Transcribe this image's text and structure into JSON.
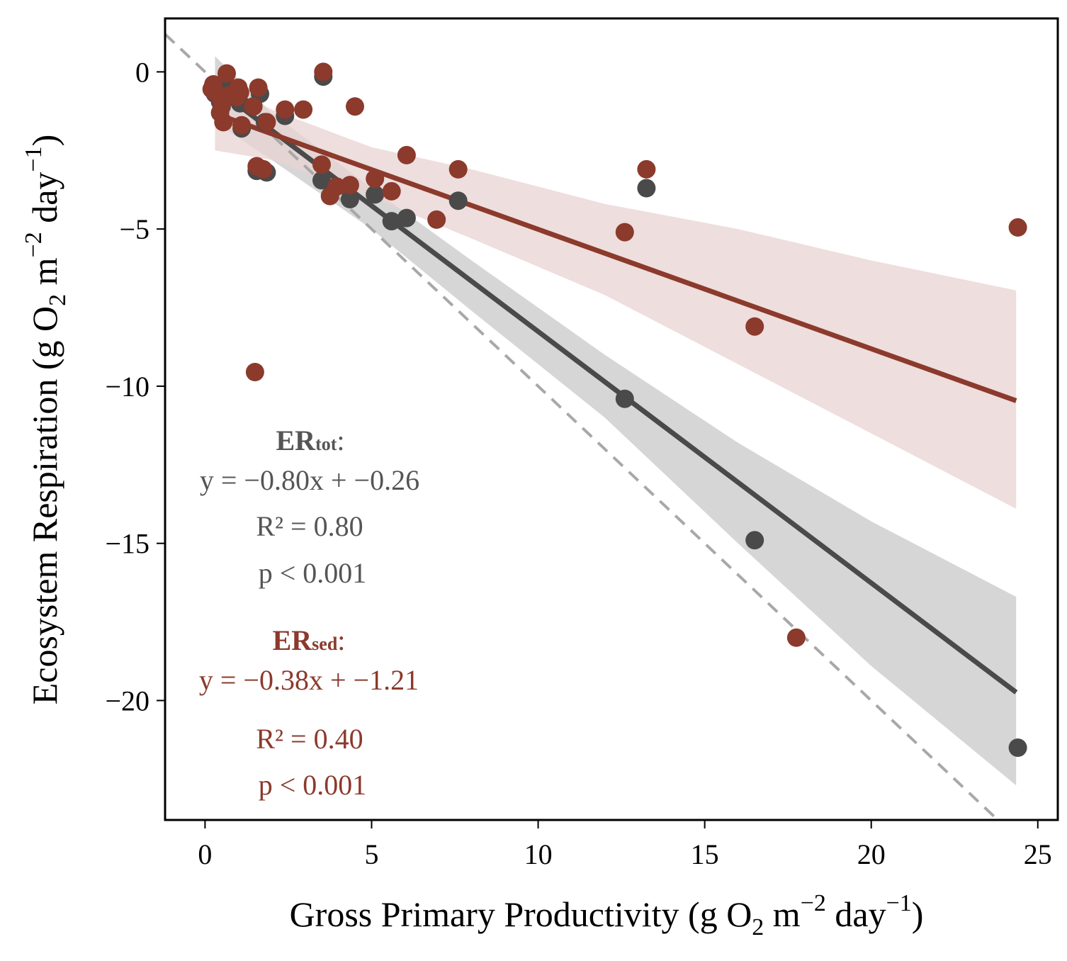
{
  "chart_data": {
    "type": "scatter",
    "xlabel": "Gross Primary Productivity (g O₂ m⁻² day⁻¹)",
    "xlabel_parts": {
      "pre": "Gross Primary Productivity (g O",
      "sub": "2",
      "mid": " m",
      "sup1": "−2",
      "mid2": " day",
      "sup2": "−1",
      "post": ")"
    },
    "ylabel": "Ecosystem Respiration (g O₂ m⁻² day⁻¹)",
    "ylabel_parts": {
      "pre": "Ecosystem Respiration (g O",
      "sub": "2",
      "mid": " m",
      "sup1": "−2",
      "mid2": " day",
      "sup2": "−1",
      "post": ")"
    },
    "xlim": [
      -1.2,
      25.6
    ],
    "ylim": [
      -23.8,
      1.7
    ],
    "xticks": [
      0,
      5,
      10,
      15,
      20,
      25
    ],
    "yticks": [
      0,
      -5,
      -10,
      -15,
      -20
    ],
    "ytick_labels": [
      "0",
      "−5",
      "−10",
      "−15",
      "−20"
    ],
    "grid": false,
    "reference_line": {
      "slope": -1,
      "intercept": 0,
      "style": "dashed",
      "color": "#a8a8a8"
    },
    "series": [
      {
        "color": "#4a4a4a",
        "band_color": "#c8c8c8",
        "x": [
          0.2,
          0.25,
          0.3,
          0.45,
          0.5,
          0.6,
          0.65,
          0.75,
          0.95,
          1.05,
          1.1,
          1.45,
          1.55,
          1.65,
          1.8,
          1.85,
          2.4,
          3.5,
          3.55,
          4.35,
          5.1,
          5.6,
          6.05,
          7.6,
          12.6,
          13.25,
          16.5,
          24.4
        ],
        "y": [
          -0.55,
          -0.4,
          -0.7,
          -0.95,
          -1.1,
          -0.35,
          -0.8,
          -0.5,
          -0.85,
          -1.0,
          -1.8,
          -1.1,
          -3.15,
          -0.7,
          -1.6,
          -3.2,
          -1.4,
          -3.45,
          -0.15,
          -4.05,
          -3.9,
          -4.75,
          -4.65,
          -4.1,
          -10.4,
          -3.7,
          -14.9,
          -21.5
        ],
        "fit": {
          "x": [
            0.3,
            24.35
          ],
          "slope": -0.8,
          "intercept": -0.26
        },
        "band": {
          "x": [
            0.3,
            2,
            5,
            8,
            12,
            16,
            20,
            24.35
          ],
          "upper": [
            0.5,
            -1.3,
            -3.7,
            -6.0,
            -9.0,
            -11.8,
            -14.3,
            -16.7
          ],
          "lower": [
            -1.6,
            -2.8,
            -5.0,
            -7.6,
            -11.0,
            -15.0,
            -18.9,
            -22.7
          ]
        },
        "annotation": {
          "label_main": "ER",
          "label_sub": "tot",
          "label_colon": ":",
          "equation": "y = −0.80x + −0.26",
          "r2": "R² = 0.80",
          "p": "p < 0.001"
        }
      },
      {
        "color": "#8b3a2c",
        "band_color": "#e8d3d1",
        "x": [
          0.2,
          0.25,
          0.3,
          0.45,
          0.5,
          0.55,
          0.65,
          0.7,
          0.95,
          1.0,
          1.05,
          1.1,
          1.45,
          1.5,
          1.55,
          1.6,
          1.75,
          1.85,
          2.4,
          2.95,
          3.5,
          3.55,
          3.75,
          3.95,
          4.35,
          4.5,
          5.1,
          5.6,
          6.05,
          6.95,
          7.6,
          12.6,
          13.25,
          16.5,
          17.75,
          24.4
        ],
        "y": [
          -0.55,
          -0.4,
          -0.65,
          -1.3,
          -1.05,
          -1.6,
          -0.05,
          -0.75,
          -0.8,
          -0.5,
          -0.65,
          -1.7,
          -1.1,
          -9.55,
          -3.0,
          -0.5,
          -3.1,
          -1.6,
          -1.2,
          -1.2,
          -2.95,
          0.0,
          -3.95,
          -3.65,
          -3.6,
          -1.1,
          -3.4,
          -3.8,
          -2.65,
          -4.7,
          -3.1,
          -5.1,
          -3.1,
          -8.1,
          -18.0,
          -4.95
        ],
        "fit": {
          "x": [
            0.3,
            24.35
          ],
          "slope": -0.38,
          "intercept": -1.21
        },
        "band": {
          "x": [
            0.3,
            2,
            5,
            8,
            12,
            16,
            20,
            24.35
          ],
          "upper": [
            -0.3,
            -1.2,
            -2.4,
            -3.1,
            -4.2,
            -5.0,
            -6.0,
            -6.95
          ],
          "lower": [
            -2.5,
            -2.8,
            -4.0,
            -5.3,
            -7.1,
            -9.3,
            -11.5,
            -13.9
          ]
        },
        "annotation": {
          "label_main": "ER",
          "label_sub": "sed",
          "label_colon": ":",
          "equation": "y = −0.38x + −1.21",
          "r2": "R² = 0.40",
          "p": "p < 0.001"
        }
      }
    ]
  }
}
